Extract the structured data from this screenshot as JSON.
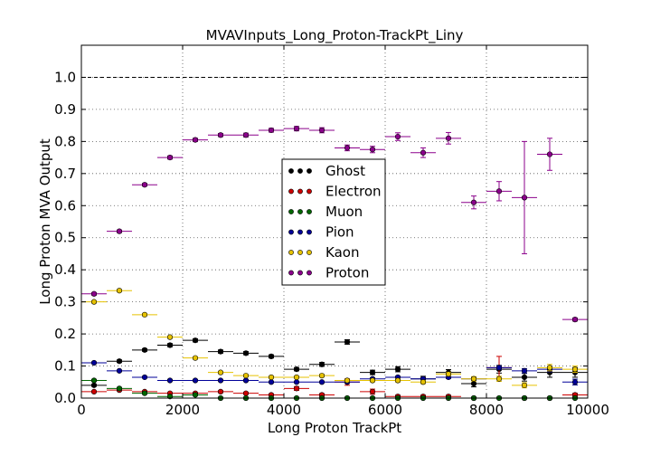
{
  "chart_data": {
    "type": "scatter",
    "title": "MVAVInputs_Long_Proton-TrackPt_Liny",
    "xlabel": "Long Proton TrackPt",
    "ylabel": "Long Proton MVA Output",
    "xlim": [
      0,
      10000
    ],
    "ylim": [
      0,
      1.1
    ],
    "x_ticks": [
      0,
      2000,
      4000,
      6000,
      8000,
      10000
    ],
    "y_ticks": [
      0.0,
      0.1,
      0.2,
      0.3,
      0.4,
      0.5,
      0.6,
      0.7,
      0.8,
      0.9,
      1.0
    ],
    "x_tick_labels": [
      "0",
      "2000",
      "4000",
      "6000",
      "8000",
      "10000"
    ],
    "y_tick_labels": [
      "0.0",
      "0.1",
      "0.2",
      "0.3",
      "0.4",
      "0.5",
      "0.6",
      "0.7",
      "0.8",
      "0.9",
      "1.0"
    ],
    "grid": true,
    "reference_line": 1.0,
    "legend_position": "center",
    "bin_width": 500,
    "x": [
      250,
      750,
      1250,
      1750,
      2250,
      2750,
      3250,
      3750,
      4250,
      4750,
      5250,
      5750,
      6250,
      6750,
      7250,
      7750,
      8250,
      8750,
      9250,
      9750
    ],
    "series": [
      {
        "name": "Ghost",
        "color": "#000000",
        "values": [
          0.04,
          0.115,
          0.15,
          0.165,
          0.18,
          0.145,
          0.14,
          0.13,
          0.09,
          0.105,
          0.175,
          0.08,
          0.09,
          0.06,
          0.08,
          0.045,
          0.09,
          0.065,
          0.08,
          0.08
        ],
        "errors": [
          0.003,
          0.004,
          0.004,
          0.005,
          0.005,
          0.005,
          0.005,
          0.005,
          0.005,
          0.006,
          0.007,
          0.007,
          0.008,
          0.008,
          0.009,
          0.01,
          0.012,
          0.012,
          0.015,
          0.015
        ]
      },
      {
        "name": "Electron",
        "color": "#cc0000",
        "values": [
          0.02,
          0.025,
          0.02,
          0.015,
          0.015,
          0.02,
          0.015,
          0.01,
          0.03,
          0.01,
          0.05,
          0.02,
          0.005,
          0.005,
          0.005,
          0.0,
          0.095,
          0.0,
          0.0,
          0.01
        ],
        "errors": [
          0.002,
          0.002,
          0.002,
          0.002,
          0.002,
          0.003,
          0.003,
          0.003,
          0.006,
          0.004,
          0.01,
          0.008,
          0.004,
          0.004,
          0.004,
          0.003,
          0.035,
          0.003,
          0.003,
          0.005
        ]
      },
      {
        "name": "Muon",
        "color": "#006600",
        "values": [
          0.055,
          0.03,
          0.015,
          0.005,
          0.01,
          0.0,
          0.0,
          0.0,
          0.0,
          0.0,
          0.0,
          0.0,
          0.0,
          0.0,
          0.0,
          0.0,
          0.0,
          0.0,
          0.0,
          0.0
        ],
        "errors": [
          0.003,
          0.003,
          0.002,
          0.002,
          0.002,
          0.002,
          0.002,
          0.002,
          0.002,
          0.002,
          0.002,
          0.002,
          0.002,
          0.002,
          0.002,
          0.002,
          0.002,
          0.002,
          0.002,
          0.002
        ]
      },
      {
        "name": "Pion",
        "color": "#000099",
        "values": [
          0.11,
          0.085,
          0.065,
          0.055,
          0.055,
          0.055,
          0.055,
          0.05,
          0.05,
          0.05,
          0.05,
          0.06,
          0.065,
          0.06,
          0.065,
          0.06,
          0.095,
          0.085,
          0.09,
          0.05
        ],
        "errors": [
          0.002,
          0.002,
          0.002,
          0.002,
          0.002,
          0.002,
          0.002,
          0.002,
          0.002,
          0.002,
          0.003,
          0.003,
          0.003,
          0.004,
          0.004,
          0.005,
          0.006,
          0.007,
          0.008,
          0.009
        ]
      },
      {
        "name": "Kaon",
        "color": "#e6c200",
        "values": [
          0.3,
          0.335,
          0.26,
          0.19,
          0.125,
          0.08,
          0.07,
          0.065,
          0.065,
          0.07,
          0.055,
          0.055,
          0.055,
          0.05,
          0.075,
          0.06,
          0.06,
          0.04,
          0.095,
          0.09
        ],
        "errors": [
          0.003,
          0.003,
          0.003,
          0.003,
          0.003,
          0.003,
          0.003,
          0.003,
          0.003,
          0.004,
          0.004,
          0.004,
          0.005,
          0.005,
          0.006,
          0.007,
          0.008,
          0.008,
          0.01,
          0.01
        ]
      },
      {
        "name": "Proton",
        "color": "#8b008b",
        "values": [
          0.325,
          0.52,
          0.665,
          0.75,
          0.805,
          0.82,
          0.82,
          0.835,
          0.84,
          0.835,
          0.78,
          0.775,
          0.815,
          0.765,
          0.81,
          0.61,
          0.645,
          0.625,
          0.76,
          0.245
        ],
        "errors": [
          0.004,
          0.004,
          0.004,
          0.005,
          0.005,
          0.005,
          0.006,
          0.006,
          0.007,
          0.008,
          0.009,
          0.01,
          0.012,
          0.015,
          0.018,
          0.02,
          0.03,
          0.175,
          0.05,
          0.005
        ]
      }
    ]
  }
}
